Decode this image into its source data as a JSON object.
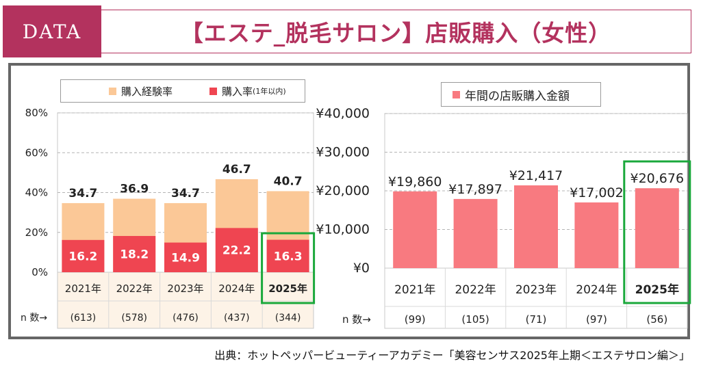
{
  "header": {
    "badge": "DATA",
    "title": "【エステ_脱毛サロン】店販購入（女性）"
  },
  "source": "出典：ホットペッパービューティーアカデミー「美容センサス2025年上期＜エステサロン編＞」",
  "colors": {
    "accent": "#b3325e",
    "experience": "#fbc897",
    "rate": "#ef4551",
    "amount": "#f87a80",
    "highlight": "#1aa83b"
  },
  "chart_data": [
    {
      "type": "bar",
      "stacked": true,
      "legend": [
        {
          "name": "購入経験率",
          "note": ""
        },
        {
          "name": "購入率",
          "note": "(1年以内)"
        }
      ],
      "categories": [
        "2021年",
        "2022年",
        "2023年",
        "2024年",
        "2025年"
      ],
      "series": [
        {
          "name": "購入経験率",
          "values": [
            34.7,
            36.9,
            34.7,
            46.7,
            40.7
          ],
          "labels": [
            "34.7",
            "36.9",
            "34.7",
            "46.7",
            "40.7"
          ]
        },
        {
          "name": "購入率",
          "values": [
            16.2,
            18.2,
            14.9,
            22.2,
            16.3
          ],
          "labels": [
            "16.2",
            "18.2",
            "14.9",
            "22.2",
            "16.3"
          ]
        }
      ],
      "n_label": "n 数→",
      "n_values": [
        "(613)",
        "(578)",
        "(476)",
        "(437)",
        "(344)"
      ],
      "yticks": [
        0,
        20,
        40,
        60,
        80
      ],
      "ytick_labels": [
        "0%",
        "20%",
        "40%",
        "60%",
        "80%"
      ],
      "ylim": [
        0,
        80
      ],
      "highlight_index": 4
    },
    {
      "type": "bar",
      "legend": [
        {
          "name": "年間の店販購入金額"
        }
      ],
      "categories": [
        "2021年",
        "2022年",
        "2023年",
        "2024年",
        "2025年"
      ],
      "series": [
        {
          "name": "年間の店販購入金額",
          "values": [
            19860,
            17897,
            21417,
            17002,
            20676
          ],
          "labels": [
            "¥19,860",
            "¥17,897",
            "¥21,417",
            "¥17,002",
            "¥20,676"
          ]
        }
      ],
      "n_label": "n 数→",
      "n_values": [
        "(99)",
        "(105)",
        "(71)",
        "(97)",
        "(56)"
      ],
      "yticks": [
        0,
        10000,
        20000,
        30000,
        40000
      ],
      "ytick_labels": [
        "¥0",
        "¥10,000",
        "¥20,000",
        "¥30,000",
        "¥40,000"
      ],
      "ylim": [
        0,
        40000
      ],
      "highlight_index": 4
    }
  ]
}
